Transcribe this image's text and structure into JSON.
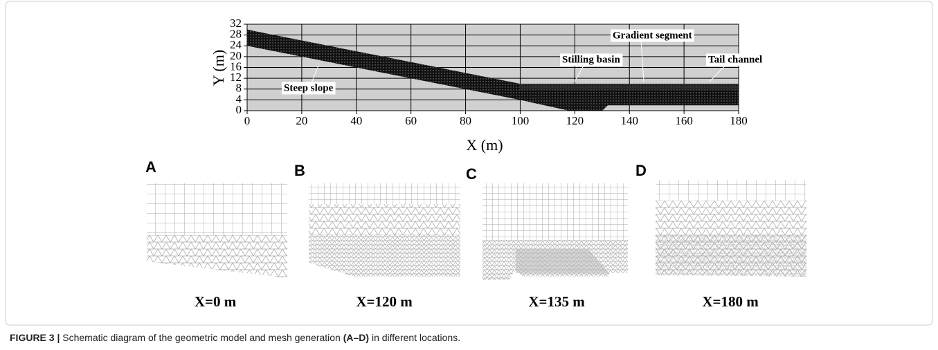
{
  "figure": {
    "plot": {
      "xlabel": "X (m)",
      "ylabel": "Y (m)",
      "xlim": [
        0,
        180
      ],
      "ylim": [
        0,
        32
      ],
      "xticks": [
        0,
        20,
        40,
        60,
        80,
        100,
        120,
        140,
        160,
        180
      ],
      "yticks": [
        0,
        4,
        8,
        12,
        16,
        20,
        24,
        28,
        32
      ],
      "annotations": [
        "Steep slope",
        "Stilling basin",
        "Gradient segment",
        "Tail channel"
      ]
    },
    "panels": [
      {
        "letter": "A",
        "caption": "X=0 m"
      },
      {
        "letter": "B",
        "caption": "X=120 m"
      },
      {
        "letter": "C",
        "caption": "X=135 m"
      },
      {
        "letter": "D",
        "caption": "X=180 m"
      }
    ],
    "caption": {
      "label": "FIGURE 3 |",
      "text": "Schematic diagram of the geometric model and mesh generation",
      "ref": "(A–D)",
      "end": "in different locations."
    }
  }
}
